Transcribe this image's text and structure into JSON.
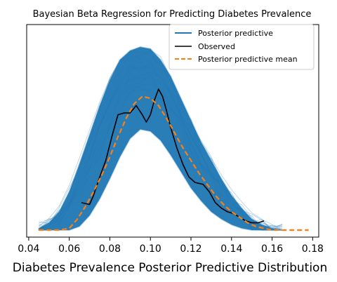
{
  "chart_data": {
    "type": "line",
    "title": "Bayesian Beta Regression for Predicting Diabetes Prevalence",
    "xlabel": "Diabetes Prevalence Posterior Predictive Distribution",
    "ylabel": "",
    "xlim": [
      0.039,
      0.183
    ],
    "ylim": [
      0,
      1
    ],
    "yticks_shown": false,
    "grid": false,
    "xticks": [
      0.04,
      0.06,
      0.08,
      0.1,
      0.12,
      0.14,
      0.16,
      0.18
    ],
    "xtick_labels": [
      "0.04",
      "0.06",
      "0.08",
      "0.10",
      "0.12",
      "0.14",
      "0.16",
      "0.18"
    ],
    "legend": {
      "placement": "top-right",
      "entries": [
        {
          "label": "Posterior predictive",
          "color": "#1f77b4",
          "style": "solid"
        },
        {
          "label": "Observed",
          "color": "#000000",
          "style": "solid"
        },
        {
          "label": "Posterior predictive mean",
          "color": "#ff7f0e",
          "style": "dashed"
        }
      ]
    },
    "series": [
      {
        "name": "Posterior predictive",
        "color": "#1f77b4",
        "kind": "band",
        "x": [
          0.045,
          0.05,
          0.055,
          0.06,
          0.065,
          0.07,
          0.075,
          0.08,
          0.085,
          0.09,
          0.095,
          0.1,
          0.105,
          0.11,
          0.115,
          0.12,
          0.125,
          0.13,
          0.135,
          0.14,
          0.145,
          0.15,
          0.155,
          0.16,
          0.165
        ],
        "upper": [
          0.01,
          0.04,
          0.1,
          0.21,
          0.36,
          0.52,
          0.68,
          0.82,
          0.93,
          0.98,
          1.0,
          0.99,
          0.93,
          0.84,
          0.72,
          0.6,
          0.48,
          0.38,
          0.28,
          0.19,
          0.12,
          0.06,
          0.03,
          0.01,
          0.0
        ],
        "lower": [
          0.0,
          0.0,
          0.0,
          0.0,
          0.02,
          0.08,
          0.17,
          0.28,
          0.4,
          0.5,
          0.55,
          0.54,
          0.49,
          0.41,
          0.32,
          0.23,
          0.16,
          0.1,
          0.06,
          0.03,
          0.01,
          0.0,
          0.0,
          0.0,
          0.0
        ]
      },
      {
        "name": "Observed",
        "color": "#000000",
        "x": [
          0.066,
          0.07,
          0.072,
          0.075,
          0.078,
          0.081,
          0.084,
          0.087,
          0.09,
          0.093,
          0.096,
          0.098,
          0.1,
          0.102,
          0.104,
          0.106,
          0.108,
          0.11,
          0.113,
          0.116,
          0.119,
          0.122,
          0.126,
          0.129,
          0.132,
          0.135,
          0.138,
          0.141,
          0.144,
          0.147,
          0.15,
          0.153,
          0.156
        ],
        "y": [
          0.15,
          0.14,
          0.19,
          0.29,
          0.38,
          0.51,
          0.63,
          0.64,
          0.64,
          0.68,
          0.63,
          0.59,
          0.63,
          0.71,
          0.77,
          0.73,
          0.65,
          0.56,
          0.45,
          0.36,
          0.29,
          0.26,
          0.25,
          0.21,
          0.15,
          0.12,
          0.1,
          0.09,
          0.07,
          0.05,
          0.04,
          0.04,
          0.05
        ]
      },
      {
        "name": "Posterior predictive mean",
        "color": "#ff7f0e",
        "x": [
          0.045,
          0.05,
          0.055,
          0.06,
          0.064,
          0.068,
          0.072,
          0.076,
          0.08,
          0.084,
          0.088,
          0.092,
          0.096,
          0.1,
          0.104,
          0.108,
          0.112,
          0.116,
          0.12,
          0.124,
          0.128,
          0.132,
          0.136,
          0.14,
          0.144,
          0.148,
          0.152,
          0.156,
          0.16,
          0.165,
          0.17,
          0.178
        ],
        "y": [
          0.0,
          0.0,
          0.0,
          0.01,
          0.06,
          0.13,
          0.21,
          0.3,
          0.4,
          0.51,
          0.61,
          0.69,
          0.73,
          0.72,
          0.68,
          0.61,
          0.53,
          0.45,
          0.38,
          0.31,
          0.25,
          0.19,
          0.14,
          0.1,
          0.07,
          0.04,
          0.02,
          0.01,
          0.0,
          0.0,
          0.0,
          0.0
        ]
      }
    ]
  }
}
